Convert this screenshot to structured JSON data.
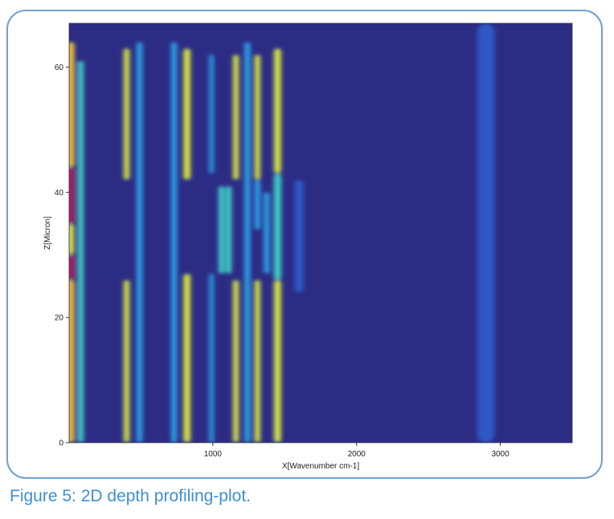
{
  "caption": "Figure 5: 2D depth profiling-plot.",
  "chart_data": {
    "type": "heatmap",
    "title": "",
    "xlabel": "X[Wavenumber cm-1]",
    "ylabel": "Z[Micron]",
    "xlim": [
      0,
      3500
    ],
    "ylim": [
      0,
      67
    ],
    "xticks": [
      1000,
      2000,
      3000
    ],
    "yticks": [
      0,
      20,
      40,
      60
    ],
    "colormap": [
      "#2c2a84",
      "#2f59c4",
      "#2ba3e8",
      "#3fd0c6",
      "#b2e04a",
      "#f1e33a",
      "#f29a2b",
      "#d83a2a",
      "#b31f5c"
    ],
    "background_color": "#2d2c85",
    "bands": [
      {
        "x": 10,
        "width": 50,
        "intensity": 0.65,
        "z_segments": [
          [
            0,
            26,
            0.65
          ],
          [
            26,
            30,
            1.0
          ],
          [
            30,
            35,
            0.5
          ],
          [
            35,
            44,
            1.0
          ],
          [
            44,
            64,
            0.65
          ]
        ]
      },
      {
        "x": 80,
        "width": 40,
        "intensity": 0.4,
        "z_segments": [
          [
            0,
            61,
            0.4
          ]
        ]
      },
      {
        "x": 400,
        "width": 40,
        "intensity": 0.45,
        "z_segments": [
          [
            0,
            26,
            0.45
          ],
          [
            42,
            63,
            0.45
          ]
        ]
      },
      {
        "x": 490,
        "width": 40,
        "intensity": 0.2,
        "z_segments": [
          [
            0,
            64,
            0.2
          ]
        ]
      },
      {
        "x": 730,
        "width": 40,
        "intensity": 0.25,
        "z_segments": [
          [
            0,
            64,
            0.25
          ]
        ]
      },
      {
        "x": 820,
        "width": 50,
        "intensity": 0.55,
        "z_segments": [
          [
            0,
            27,
            0.55
          ],
          [
            42,
            63,
            0.55
          ]
        ]
      },
      {
        "x": 990,
        "width": 30,
        "intensity": 0.3,
        "z_segments": [
          [
            0,
            27,
            0.3
          ],
          [
            43,
            62,
            0.3
          ]
        ]
      },
      {
        "x": 1060,
        "width": 40,
        "intensity": 0.35,
        "z_segments": [
          [
            27,
            41,
            0.35
          ]
        ]
      },
      {
        "x": 1110,
        "width": 40,
        "intensity": 0.35,
        "z_segments": [
          [
            27,
            41,
            0.35
          ]
        ]
      },
      {
        "x": 1160,
        "width": 40,
        "intensity": 0.45,
        "z_segments": [
          [
            0,
            26,
            0.45
          ],
          [
            42,
            62,
            0.45
          ]
        ]
      },
      {
        "x": 1240,
        "width": 40,
        "intensity": 0.2,
        "z_segments": [
          [
            0,
            64,
            0.2
          ]
        ]
      },
      {
        "x": 1310,
        "width": 40,
        "intensity": 0.45,
        "z_segments": [
          [
            0,
            26,
            0.45
          ],
          [
            34,
            42,
            0.3
          ],
          [
            42,
            62,
            0.45
          ]
        ]
      },
      {
        "x": 1375,
        "width": 40,
        "intensity": 0.3,
        "z_segments": [
          [
            27,
            40,
            0.3
          ]
        ]
      },
      {
        "x": 1450,
        "width": 50,
        "intensity": 0.55,
        "z_segments": [
          [
            0,
            26,
            0.55
          ],
          [
            26,
            43,
            0.35
          ],
          [
            43,
            63,
            0.55
          ]
        ]
      },
      {
        "x": 1600,
        "width": 60,
        "intensity": 0.15,
        "z_segments": [
          [
            24,
            42,
            0.15
          ]
        ]
      },
      {
        "x": 2900,
        "width": 120,
        "intensity": 0.18,
        "z_segments": [
          [
            0,
            67,
            0.18
          ]
        ]
      }
    ]
  }
}
